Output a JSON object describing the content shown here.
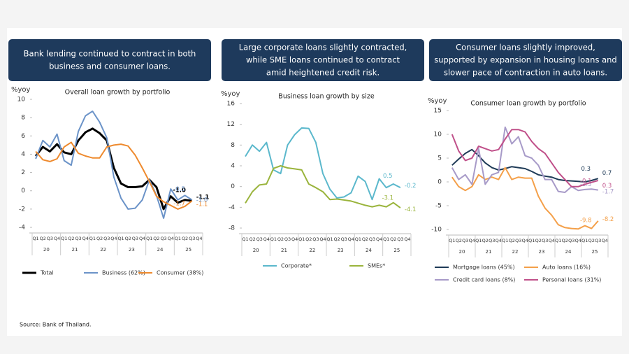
{
  "headers": [
    [
      "Bank lending continued to contract in both",
      "business and consumer loans."
    ],
    [
      "Large corporate loans slightly contracted,",
      "while SME loans continued to contract",
      "amid heightened credit risk."
    ],
    [
      "Consumer loans slightly improved,",
      "supported by expansion in housing loans and",
      "slower pace of contraction in auto loans."
    ]
  ],
  "source": "Source: Bank of Thailand.",
  "chart_data": [
    {
      "type": "line",
      "title": "Overall loan growth by portfolio",
      "y_label": "%yoy",
      "categories": [
        "Q1",
        "Q2",
        "Q3",
        "Q4",
        "Q1",
        "Q2",
        "Q3",
        "Q4",
        "Q1",
        "Q2",
        "Q3",
        "Q4",
        "Q1",
        "Q2",
        "Q3",
        "Q4",
        "Q1",
        "Q2",
        "Q3",
        "Q4",
        "Q1",
        "Q2",
        "Q3",
        "Q4"
      ],
      "year_groups": [
        "20",
        "21",
        "22",
        "23",
        "24",
        "25"
      ],
      "ylim": [
        -4,
        10
      ],
      "yticks": [
        -4,
        -2,
        0,
        2,
        4,
        6,
        8,
        10
      ],
      "series": [
        {
          "name": "Total",
          "color": "#000000",
          "values": [
            3.8,
            4.8,
            4.3,
            5.1,
            4.2,
            4.0,
            5.5,
            6.4,
            6.8,
            6.3,
            5.5,
            2.5,
            0.8,
            0.4,
            0.4,
            0.5,
            1.2,
            0.4,
            -2.0,
            -0.6,
            -1.3,
            -1.0,
            -1.1,
            null
          ],
          "value_labels": [
            null,
            null,
            null,
            null,
            null,
            null,
            null,
            null,
            null,
            null,
            null,
            null,
            null,
            null,
            null,
            null,
            null,
            null,
            null,
            null,
            null,
            "-1.0",
            "-1.1",
            null
          ]
        },
        {
          "name": "Business (62%)",
          "color": "#6b93c8",
          "values": [
            3.5,
            5.5,
            4.8,
            6.2,
            3.3,
            2.8,
            6.5,
            8.2,
            8.7,
            7.5,
            5.8,
            1.5,
            -0.8,
            -2.0,
            -1.9,
            -1.0,
            1.2,
            -0.5,
            -3.0,
            0.2,
            -1.0,
            -0.5,
            -1.0,
            null
          ],
          "value_labels": [
            null,
            null,
            null,
            null,
            null,
            null,
            null,
            null,
            null,
            null,
            null,
            null,
            null,
            null,
            null,
            null,
            null,
            null,
            null,
            null,
            null,
            "-0.5",
            "-1.0",
            null
          ]
        },
        {
          "name": "Consumer (38%)",
          "color": "#ee8a2e",
          "values": [
            4.3,
            3.4,
            3.2,
            3.5,
            4.8,
            5.3,
            4.1,
            3.8,
            3.6,
            3.6,
            4.8,
            5.0,
            5.1,
            4.9,
            3.9,
            2.5,
            1.0,
            -0.6,
            -1.2,
            -1.6,
            -2.0,
            -1.7,
            -1.1,
            null
          ],
          "value_labels": [
            null,
            null,
            null,
            null,
            null,
            null,
            null,
            null,
            null,
            null,
            null,
            null,
            null,
            null,
            null,
            null,
            null,
            null,
            null,
            null,
            null,
            "-1.7",
            "-1.1",
            null
          ]
        }
      ]
    },
    {
      "type": "line",
      "title": "Business loan growth by size",
      "y_label": "%yoy",
      "categories": [
        "Q1",
        "Q2",
        "Q3",
        "Q4",
        "Q1",
        "Q2",
        "Q3",
        "Q4",
        "Q1",
        "Q2",
        "Q3",
        "Q4",
        "Q1",
        "Q2",
        "Q3",
        "Q4",
        "Q1",
        "Q2",
        "Q3",
        "Q4",
        "Q1",
        "Q2",
        "Q3",
        "Q4"
      ],
      "year_groups": [
        "20",
        "21",
        "22",
        "23",
        "24",
        "25"
      ],
      "ylim": [
        -8,
        16
      ],
      "yticks": [
        -8,
        -4,
        0,
        4,
        8,
        12,
        16
      ],
      "series": [
        {
          "name": "Corporate*",
          "color": "#5bb8cc",
          "values": [
            5.8,
            8.0,
            6.8,
            8.5,
            3.2,
            2.5,
            8.0,
            10.0,
            11.3,
            11.2,
            8.5,
            2.5,
            -0.5,
            -2.2,
            -2.0,
            -1.2,
            2.0,
            1.0,
            -2.5,
            1.5,
            -0.2,
            0.5,
            -0.2,
            null
          ],
          "value_labels": [
            null,
            null,
            null,
            null,
            null,
            null,
            null,
            null,
            null,
            null,
            null,
            null,
            null,
            null,
            null,
            null,
            null,
            null,
            null,
            null,
            null,
            "0.5",
            "-0.2",
            null
          ]
        },
        {
          "name": "SMEs*",
          "color": "#9ab43c",
          "values": [
            -3.2,
            -1.0,
            0.3,
            0.5,
            3.5,
            4.0,
            3.6,
            3.4,
            3.2,
            0.5,
            -0.2,
            -1.0,
            -2.5,
            -2.4,
            -2.6,
            -2.8,
            -3.2,
            -3.6,
            -3.9,
            -3.6,
            -3.9,
            -3.1,
            -4.1,
            null
          ],
          "value_labels": [
            null,
            null,
            null,
            null,
            null,
            null,
            null,
            null,
            null,
            null,
            null,
            null,
            null,
            null,
            null,
            null,
            null,
            null,
            null,
            null,
            null,
            "-3.1",
            "-4.1",
            null
          ]
        }
      ]
    },
    {
      "type": "line",
      "title": "Consumer loan growth by portfolio",
      "y_label": "%yoy",
      "categories": [
        "Q1",
        "Q2",
        "Q3",
        "Q4",
        "Q1",
        "Q2",
        "Q3",
        "Q4",
        "Q1",
        "Q2",
        "Q3",
        "Q4",
        "Q1",
        "Q2",
        "Q3",
        "Q4",
        "Q1",
        "Q2",
        "Q3",
        "Q4",
        "Q1",
        "Q2",
        "Q3",
        "Q4"
      ],
      "year_groups": [
        "20",
        "21",
        "22",
        "23",
        "24",
        "25"
      ],
      "ylim": [
        -10,
        15
      ],
      "yticks": [
        -10,
        -5,
        0,
        5,
        10,
        15
      ],
      "series": [
        {
          "name": "Mortgage loans (45%)",
          "color": "#1f3b57",
          "values": [
            3.5,
            4.8,
            6.0,
            6.8,
            5.5,
            4.0,
            3.0,
            2.5,
            2.8,
            3.2,
            3.0,
            2.8,
            2.2,
            1.5,
            1.2,
            1.0,
            0.5,
            0.3,
            0.2,
            0.1,
            0.0,
            0.3,
            0.7,
            null
          ],
          "value_labels": [
            null,
            null,
            null,
            null,
            null,
            null,
            null,
            null,
            null,
            null,
            null,
            null,
            null,
            null,
            null,
            null,
            null,
            null,
            null,
            null,
            null,
            "0.3",
            "0.7",
            null
          ]
        },
        {
          "name": "Auto loans (16%)",
          "color": "#f4a04a",
          "values": [
            1.0,
            -1.0,
            -1.8,
            -1.0,
            1.5,
            0.5,
            1.0,
            0.5,
            3.0,
            0.5,
            1.0,
            0.8,
            0.8,
            -3.0,
            -5.5,
            -7.0,
            -9.0,
            -9.6,
            -9.8,
            -9.9,
            -9.2,
            -9.8,
            -8.2,
            null
          ],
          "value_labels": [
            null,
            null,
            null,
            null,
            null,
            null,
            null,
            null,
            null,
            null,
            null,
            null,
            null,
            null,
            null,
            null,
            null,
            null,
            null,
            null,
            null,
            "-9.8",
            "-8.2",
            null
          ]
        },
        {
          "name": "Credit card loans (8%)",
          "color": "#a79ac8",
          "values": [
            3.0,
            0.5,
            1.5,
            -0.5,
            7.0,
            -0.5,
            1.5,
            2.0,
            11.5,
            8.0,
            9.5,
            5.5,
            5.0,
            3.5,
            0.5,
            0.5,
            -2.0,
            -2.2,
            -1.0,
            -1.8,
            -1.6,
            -1.5,
            -1.7,
            null
          ],
          "value_labels": [
            null,
            null,
            null,
            null,
            null,
            null,
            null,
            null,
            null,
            null,
            null,
            null,
            null,
            null,
            null,
            null,
            null,
            null,
            null,
            null,
            null,
            "-1.5",
            "-1.7",
            null
          ]
        },
        {
          "name": "Personal loans (31%)",
          "color": "#c0508a",
          "values": [
            10.0,
            6.5,
            4.5,
            5.0,
            7.5,
            7.0,
            6.5,
            6.8,
            9.0,
            11.0,
            11.0,
            10.5,
            8.5,
            7.0,
            6.0,
            4.0,
            2.0,
            0.5,
            -1.0,
            -1.0,
            -0.5,
            -0.1,
            0.3,
            null
          ],
          "value_labels": [
            null,
            null,
            null,
            null,
            null,
            null,
            null,
            null,
            null,
            null,
            null,
            null,
            null,
            null,
            null,
            null,
            null,
            null,
            null,
            null,
            null,
            "-0.1",
            "0.3",
            null
          ]
        }
      ]
    }
  ]
}
